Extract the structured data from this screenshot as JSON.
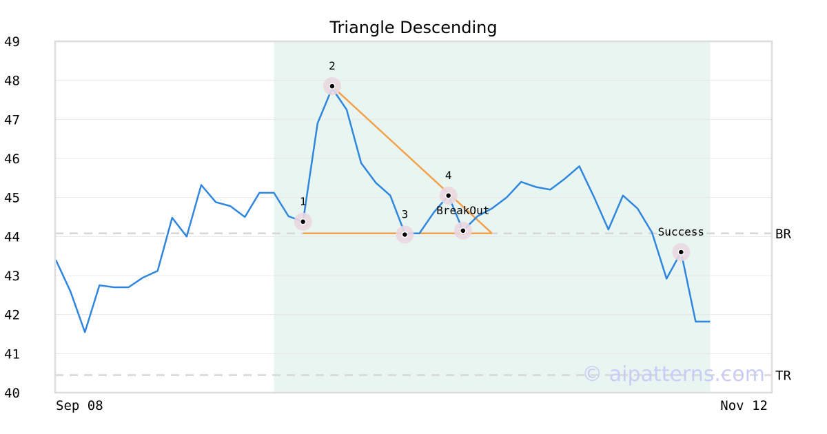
{
  "chart_data": {
    "type": "line",
    "title": "Triangle Descending",
    "xlabel": "",
    "ylabel": "",
    "ylim": [
      40,
      49
    ],
    "xlim": [
      0,
      49
    ],
    "grid": true,
    "yticks": [
      40,
      41,
      42,
      43,
      44,
      45,
      46,
      47,
      48,
      49
    ],
    "xtick_labels": [
      {
        "x": 0,
        "label": "Sep 08"
      },
      {
        "x": 49,
        "label": "Nov 12"
      }
    ],
    "series": [
      {
        "color": "#2e86de",
        "values": [
          43.4,
          42.6,
          41.55,
          42.75,
          42.7,
          42.7,
          42.95,
          43.12,
          44.48,
          44.0,
          45.32,
          44.88,
          44.78,
          44.5,
          45.12,
          45.12,
          44.52,
          44.38,
          46.9,
          47.8,
          47.25,
          45.88,
          45.38,
          45.05,
          44.08,
          44.08,
          44.62,
          45.05,
          44.15,
          44.52,
          44.72,
          45.0,
          45.4,
          45.27,
          45.2,
          45.48,
          45.8,
          45.02,
          44.18,
          45.05,
          44.72,
          44.1,
          42.92,
          43.6,
          41.82,
          41.82
        ]
      }
    ],
    "reference_lines": [
      {
        "name": "BR",
        "y": 44.08
      },
      {
        "name": "TR",
        "y": 40.45
      }
    ],
    "pattern_region": {
      "x_start": 15,
      "x_end": 45,
      "color": "#e8f5f0"
    },
    "pattern_lines": [
      {
        "color": "#f4a04a",
        "points": [
          [
            19,
            47.85
          ],
          [
            30,
            44.08
          ]
        ]
      },
      {
        "color": "#f4a04a",
        "points": [
          [
            17,
            44.08
          ],
          [
            30,
            44.08
          ]
        ]
      }
    ],
    "points": [
      {
        "label": "1",
        "x": 17,
        "y": 44.38
      },
      {
        "label": "2",
        "x": 19,
        "y": 47.85
      },
      {
        "label": "3",
        "x": 24,
        "y": 44.05
      },
      {
        "label": "4",
        "x": 27,
        "y": 45.05
      },
      {
        "label": "BreakOut",
        "x": 28,
        "y": 44.15
      },
      {
        "label": "Success",
        "x": 43,
        "y": 43.6
      }
    ],
    "watermark": "© aipatterns.com"
  }
}
